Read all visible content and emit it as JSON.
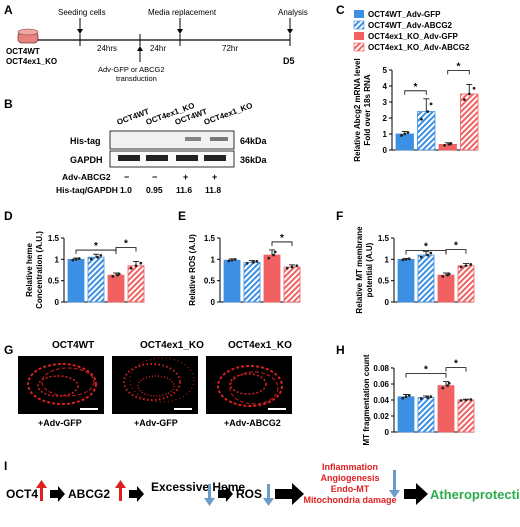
{
  "panels": {
    "A": "A",
    "B": "B",
    "C": "C",
    "D": "D",
    "E": "E",
    "F": "F",
    "G": "G",
    "H": "H",
    "I": "I"
  },
  "timeline": {
    "cell1": "OCT4WT",
    "cell2": "OCT4ex1_KO",
    "seeding": "Seeding cells",
    "media": "Media replacement",
    "transduction_line1": "Adv-GFP or ABCG2",
    "transduction_line2": "transduction",
    "t1": "24hrs",
    "t2": "24hr",
    "t3": "72hr",
    "analysis": "Analysis",
    "end": "D5"
  },
  "blot": {
    "lanes": [
      "OCT4WT",
      "OCT4ex1_KO",
      "OCT4WT",
      "OCT4ex1_KO"
    ],
    "rows": [
      {
        "label": "His-tag",
        "size": "64kDa"
      },
      {
        "label": "GAPDH",
        "size": "36kDa"
      }
    ],
    "treatment_label": "Adv-ABCG2",
    "treatment": [
      "−",
      "−",
      "+",
      "+"
    ],
    "ratio_label": "His-taq/GAPDH",
    "ratios": [
      "1.0",
      "0.95",
      "11.6",
      "11.8"
    ]
  },
  "legend": [
    "OCT4WT_Adv-GFP",
    "OCT4WT_Adv-ABCG2",
    "OCT4ex1_KO_Adv-GFP",
    "OCT4ex1_KO_Adv-ABCG2"
  ],
  "colors": {
    "blue": "#3c8fe3",
    "red": "#f26161",
    "timeline_box": "#e8807c",
    "green": "#2cab4d",
    "red_text": "#e02020",
    "arrow_red": "#e02020",
    "arrow_blue": "#6a9cc7"
  },
  "micro": {
    "titles": [
      "OCT4WT",
      "OCT4ex1_KO",
      "OCT4ex1_KO"
    ],
    "labels": [
      "+Adv-GFP",
      "+Adv-GFP",
      "+Adv-ABCG2"
    ]
  },
  "pathway": {
    "items": [
      "OCT4",
      "ABCG2",
      "Excessive Heme",
      "ROS"
    ],
    "effects": [
      "Inflammation",
      "Angiogenesis",
      "Endo-MT",
      "Mitochondria damage"
    ],
    "outcome": "Atheroprotection"
  },
  "chart_data": [
    {
      "id": "C",
      "type": "bar",
      "ylabel": "Relative Abcg2 mRNA level Fold over 18s RNA",
      "ylim": [
        0,
        5
      ],
      "yticks": [
        "0",
        "1",
        "2",
        "3",
        "4",
        "5"
      ],
      "values": [
        1.0,
        2.4,
        0.35,
        3.5
      ],
      "errors": [
        0.15,
        0.8,
        0.1,
        0.6
      ],
      "sig": [
        "*",
        "*"
      ]
    },
    {
      "id": "D",
      "type": "bar",
      "ylabel": "Relative heme Concentration (A.U.)",
      "ylim": [
        0,
        1.5
      ],
      "yticks": [
        "0",
        "0.5",
        "1",
        "1.5"
      ],
      "values": [
        1.0,
        1.05,
        0.63,
        0.85
      ],
      "errors": [
        0.03,
        0.07,
        0.05,
        0.1
      ],
      "sig": [
        "*",
        "*"
      ]
    },
    {
      "id": "E",
      "type": "bar",
      "ylabel": "Relative ROS (A.U)",
      "ylim": [
        0,
        1.5
      ],
      "yticks": [
        "0",
        "0.5",
        "1",
        "1.5"
      ],
      "values": [
        0.98,
        0.93,
        1.1,
        0.82
      ],
      "errors": [
        0.03,
        0.04,
        0.12,
        0.05
      ],
      "sig": [
        "*"
      ]
    },
    {
      "id": "F",
      "type": "bar",
      "ylabel": "Relative MT membrane potential (A.U)",
      "ylim": [
        0,
        1.5
      ],
      "yticks": [
        "0",
        "0.5",
        "1",
        "1.5"
      ],
      "values": [
        1.0,
        1.1,
        0.63,
        0.85
      ],
      "errors": [
        0.02,
        0.08,
        0.05,
        0.05
      ],
      "sig": [
        "*",
        "*"
      ]
    },
    {
      "id": "H",
      "type": "bar",
      "ylabel": "MT fragmentation count",
      "ylim": [
        0,
        0.08
      ],
      "yticks": [
        "0",
        "0.02",
        "0.04",
        "0.06",
        "0.08"
      ],
      "values": [
        0.044,
        0.043,
        0.058,
        0.04
      ],
      "errors": [
        0.003,
        0.002,
        0.005,
        0.001
      ],
      "sig": [
        "*",
        "*"
      ]
    }
  ]
}
